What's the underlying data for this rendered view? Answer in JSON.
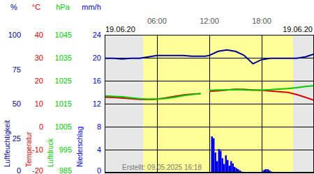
{
  "chart_data": {
    "type": "line",
    "x": [
      0,
      1,
      2,
      3,
      4,
      5,
      6,
      7,
      8,
      9,
      10,
      11,
      11.5,
      12,
      13,
      14,
      15,
      16,
      17,
      18,
      19,
      20,
      21,
      22,
      23,
      24
    ],
    "xlim": [
      0,
      24
    ],
    "xticks": [
      {
        "value": 6,
        "label": "06:00"
      },
      {
        "value": 12,
        "label": "12:00"
      },
      {
        "value": 18,
        "label": "18:00"
      }
    ],
    "grid": true,
    "daylight": [
      4.4,
      21.6
    ],
    "annotations": [
      "19.06.20",
      "19.06.20",
      "Erstellt: 09.05.2025 16:18"
    ],
    "series": [
      {
        "name": "Luftfeuchtigkeit",
        "unit": "%",
        "color": "#000099",
        "type": "line",
        "ylim": [
          0,
          100
        ],
        "yticks": [
          0,
          25,
          50,
          75,
          100
        ],
        "values": [
          83,
          83,
          82.5,
          83,
          83,
          84,
          85,
          85,
          85,
          85,
          84.5,
          84.5,
          84.5,
          85,
          88,
          89,
          88,
          85,
          79,
          82,
          83,
          83,
          83,
          83,
          84,
          86
        ]
      },
      {
        "name": "Temperatur",
        "unit": "°C",
        "color": "#dd0000",
        "type": "line",
        "ylim": [
          -20,
          40
        ],
        "yticks": [
          -20,
          -10,
          0,
          10,
          20,
          30,
          40
        ],
        "values": [
          12.9,
          12.7,
          12.5,
          12.2,
          11.9,
          11.8,
          12.0,
          12.5,
          13.2,
          13.8,
          14.2,
          14.4,
          null,
          15.4,
          15.6,
          16.0,
          16.3,
          16.2,
          16.0,
          15.8,
          15.5,
          15.2,
          14.9,
          14.0,
          12.8,
          11.5
        ]
      },
      {
        "name": "Luftdruck",
        "unit": "hPa",
        "color": "#00cc00",
        "type": "line",
        "ylim": [
          985,
          1045
        ],
        "yticks": [
          985,
          995,
          1005,
          1015,
          1025,
          1035,
          1045
        ],
        "values": [
          1018.4,
          1018.2,
          1018.0,
          1017.6,
          1017.2,
          1017.0,
          1017.1,
          1017.3,
          1017.8,
          1018.5,
          1019.0,
          1019.4,
          null,
          1020.8,
          1021.0,
          1021.0,
          1021.2,
          1021.0,
          1020.9,
          1020.9,
          1021.1,
          1021.4,
          1021.6,
          1022.0,
          1022.5,
          1022.8
        ]
      },
      {
        "name": "Niederschlag",
        "unit": "mm/h",
        "color": "#0000ee",
        "type": "bar",
        "ylim": [
          0,
          24
        ],
        "yticks": [
          0,
          4,
          8,
          12,
          16,
          20,
          24
        ],
        "x": [
          12.2,
          12.4,
          12.6,
          12.8,
          13.0,
          13.2,
          13.4,
          13.6,
          13.8,
          14.0,
          14.2,
          14.4,
          14.6,
          14.8,
          15.0,
          15.2,
          15.4,
          15.6,
          18.0,
          18.2,
          18.4,
          18.6,
          18.8,
          19.0
        ],
        "values": [
          6.3,
          6.0,
          3.5,
          2.0,
          4.1,
          3.8,
          2.5,
          1.5,
          3.0,
          2.2,
          1.2,
          2.0,
          1.6,
          1.0,
          0.8,
          0.6,
          0.4,
          0.2,
          0.3,
          0.5,
          0.6,
          0.6,
          0.4,
          0.2
        ]
      }
    ]
  }
}
